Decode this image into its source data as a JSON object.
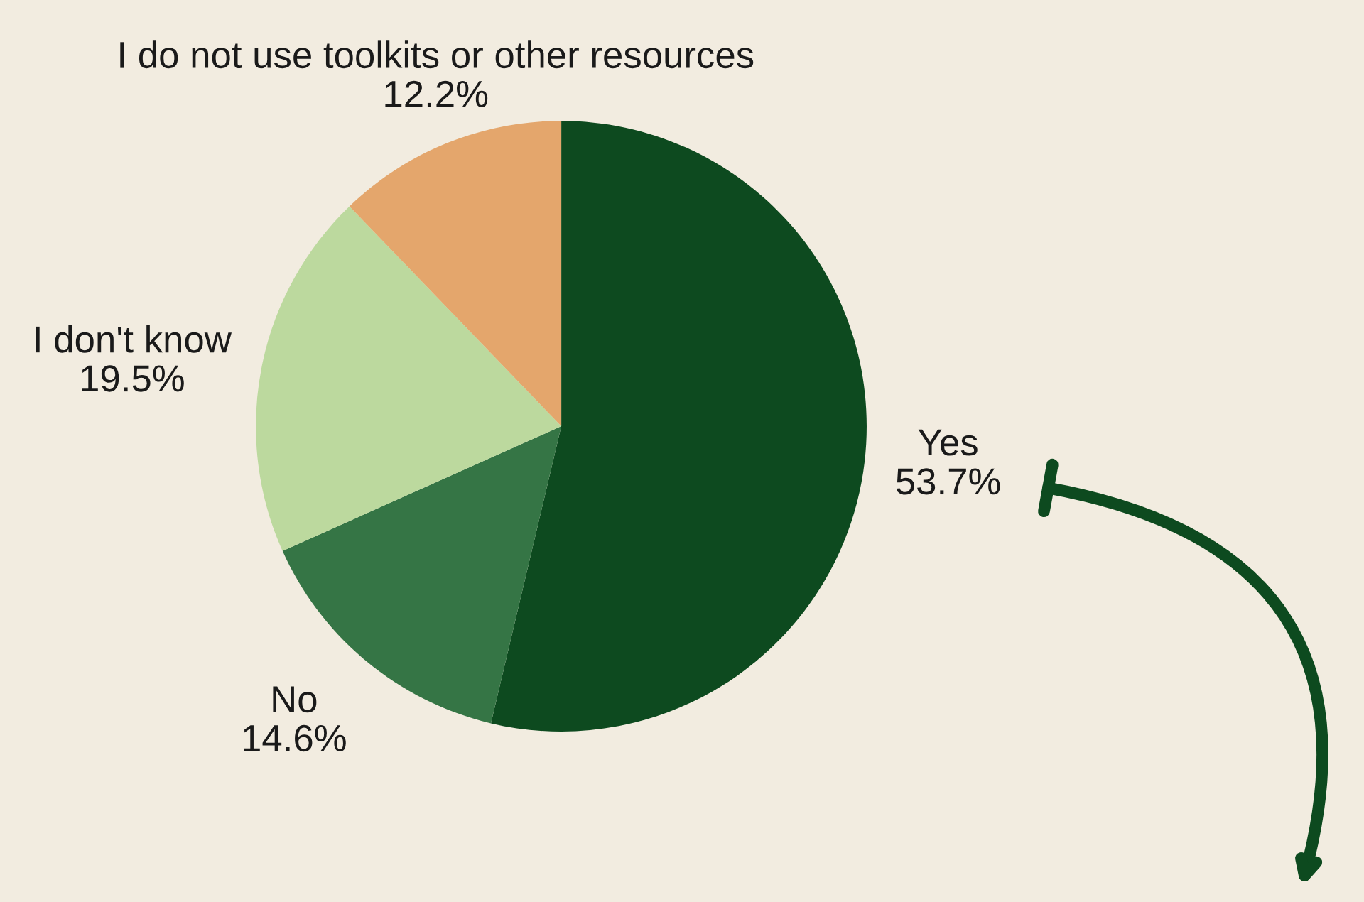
{
  "chart_data": {
    "type": "pie",
    "categories": [
      "Yes",
      "No",
      "I don't know",
      "I do not use toolkits or other resources"
    ],
    "values": [
      53.7,
      14.6,
      19.5,
      12.2
    ],
    "value_labels": [
      "53.7%",
      "14.6%",
      "19.5%",
      "12.2%"
    ],
    "colors": [
      "#0d4a1f",
      "#357545",
      "#bcd99e",
      "#e4a66c"
    ]
  }
}
